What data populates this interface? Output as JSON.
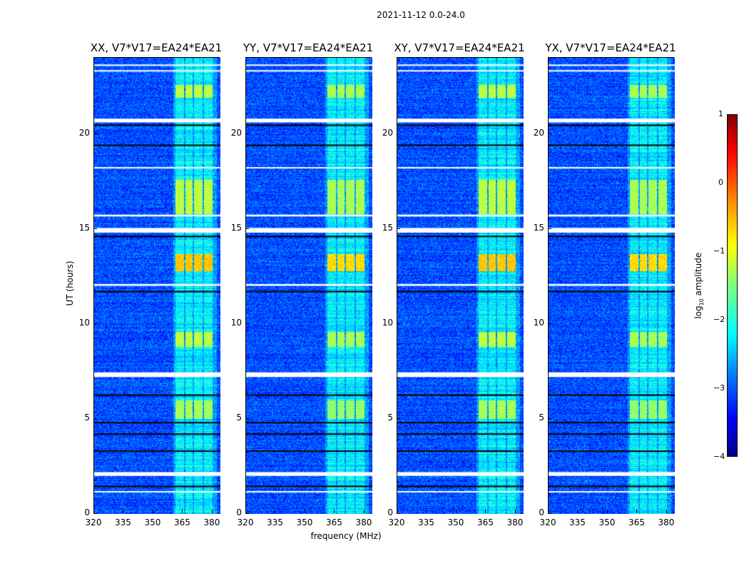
{
  "suptitle": "2021-11-12 0.0-24.0",
  "chart_data": {
    "type": "heatmap",
    "title": "2021-11-12 0.0-24.0",
    "xlabel": "frequency (MHz)",
    "ylabel": "UT (hours)",
    "xlim": [
      320,
      384
    ],
    "ylim": [
      0,
      24
    ],
    "xticks": [
      "320",
      "335",
      "350",
      "365",
      "380"
    ],
    "yticks": [
      "0",
      "5",
      "10",
      "15",
      "20"
    ],
    "panels": [
      {
        "title": "XX, V7*V17=EA24*EA21"
      },
      {
        "title": "YY, V7*V17=EA24*EA21"
      },
      {
        "title": "XY, V7*V17=EA24*EA21"
      },
      {
        "title": "YX, V7*V17=EA24*EA21"
      }
    ],
    "colorbar": {
      "label": "log",
      "label_sub": "10",
      "label_rest": " amplitude",
      "range": [
        -4,
        1
      ],
      "ticks": [
        "1",
        "0",
        "−1",
        "−2",
        "−3",
        "−4"
      ],
      "colormap": "jet"
    },
    "background_log_amplitude": -3,
    "rfi_channel_bands_mhz": [
      [
        361,
        365.5
      ],
      [
        366,
        369.6
      ],
      [
        370.5,
        374.9
      ],
      [
        375.6,
        380
      ]
    ],
    "bright_epochs_hours": [
      [
        5.0,
        6.0,
        -1.3
      ],
      [
        8.8,
        9.6,
        -1.2
      ],
      [
        12.8,
        13.7,
        -0.6
      ],
      [
        15.8,
        17.6,
        -1.2
      ],
      [
        21.9,
        22.6,
        -1.2
      ]
    ],
    "flagged_hours": [
      [
        2.0,
        2.2
      ],
      [
        7.2,
        7.45
      ],
      [
        14.8,
        15.05
      ],
      [
        15.65,
        15.75
      ],
      [
        20.6,
        20.8
      ],
      [
        1.15,
        1.2
      ],
      [
        12.0,
        12.1
      ],
      [
        18.2,
        18.25
      ],
      [
        23.3,
        23.35
      ],
      [
        23.6,
        23.65
      ]
    ],
    "dark_rows_hours": [
      1.45,
      3.3,
      4.2,
      4.8,
      6.25,
      11.7,
      14.6,
      19.4,
      20.45
    ]
  }
}
